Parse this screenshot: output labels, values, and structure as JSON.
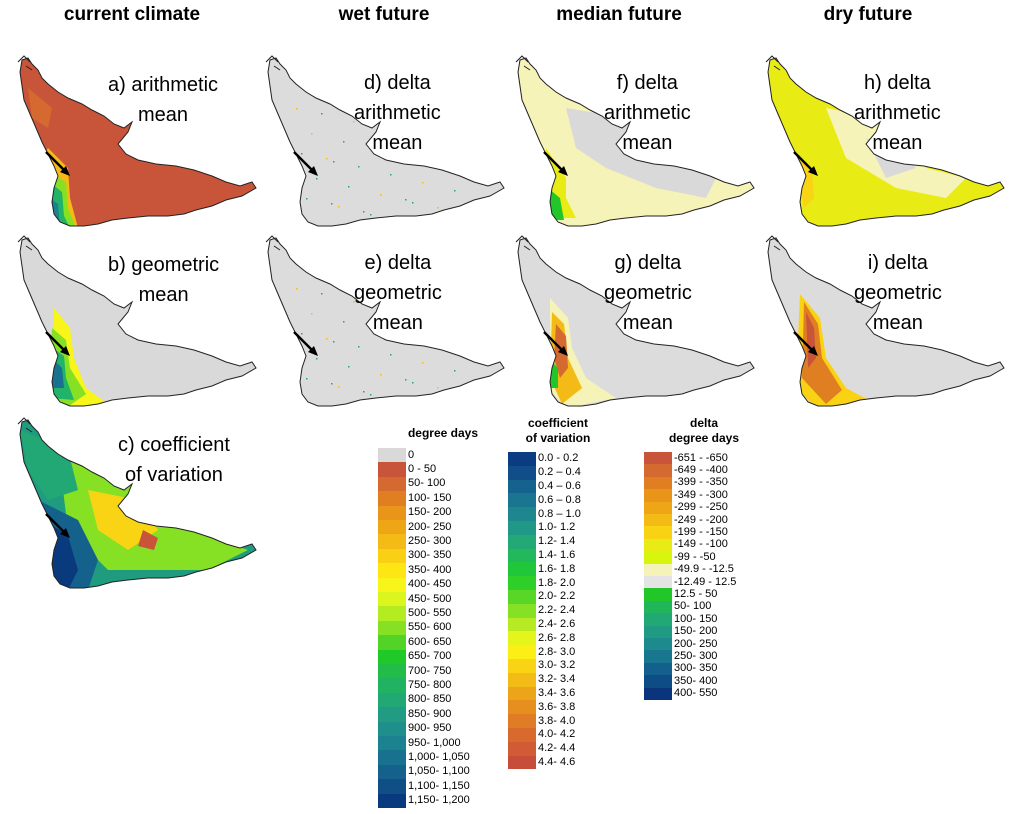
{
  "columns": [
    "current climate",
    "wet future",
    "median future",
    "dry future"
  ],
  "panels": [
    {
      "id": "a",
      "lines": [
        "a) arithmetic",
        "mean"
      ],
      "variant": "cur-arith"
    },
    {
      "id": "b",
      "lines": [
        "b) geometric",
        "mean"
      ],
      "variant": "cur-geo"
    },
    {
      "id": "c",
      "lines": [
        "c) coefficient",
        "of variation"
      ],
      "variant": "cur-cv"
    },
    {
      "id": "d",
      "lines": [
        "d) delta",
        "arithmetic",
        "mean"
      ],
      "variant": "wet"
    },
    {
      "id": "e",
      "lines": [
        "e) delta",
        "geometric",
        "mean"
      ],
      "variant": "wet"
    },
    {
      "id": "f",
      "lines": [
        "f) delta",
        "arithmetic",
        "mean"
      ],
      "variant": "med-arith"
    },
    {
      "id": "g",
      "lines": [
        "g) delta",
        "geometric",
        "mean"
      ],
      "variant": "med-geo"
    },
    {
      "id": "h",
      "lines": [
        "h) delta",
        "arithmetic",
        "mean"
      ],
      "variant": "dry-arith"
    },
    {
      "id": "i",
      "lines": [
        "i) delta",
        "geometric",
        "mean"
      ],
      "variant": "dry-geo"
    }
  ],
  "legends": {
    "degree_days": {
      "title": [
        "degree days"
      ],
      "items": [
        {
          "label": "0",
          "color": "#d9d9d9"
        },
        {
          "label": "0 - 50",
          "color": "#c8553a"
        },
        {
          "label": "50- 100",
          "color": "#d46a2f"
        },
        {
          "label": "100- 150",
          "color": "#e07f22"
        },
        {
          "label": "150- 200",
          "color": "#e8951a"
        },
        {
          "label": "200- 250",
          "color": "#eea617"
        },
        {
          "label": "250- 300",
          "color": "#f4bb16"
        },
        {
          "label": "300- 350",
          "color": "#f9d014"
        },
        {
          "label": "350- 400",
          "color": "#fde614"
        },
        {
          "label": "400- 450",
          "color": "#f8f51a"
        },
        {
          "label": "450- 500",
          "color": "#dcf51e"
        },
        {
          "label": "500- 550",
          "color": "#b4ec22"
        },
        {
          "label": "550- 600",
          "color": "#86e024"
        },
        {
          "label": "600- 650",
          "color": "#52d426"
        },
        {
          "label": "650- 700",
          "color": "#20c828"
        },
        {
          "label": "700- 750",
          "color": "#21bd48"
        },
        {
          "label": "750- 800",
          "color": "#22b362"
        },
        {
          "label": "800- 850",
          "color": "#22a874"
        },
        {
          "label": "850- 900",
          "color": "#219c82"
        },
        {
          "label": "900- 950",
          "color": "#1f8f8c"
        },
        {
          "label": "950- 1,000",
          "color": "#1c8290"
        },
        {
          "label": "1,000- 1,050",
          "color": "#18728f"
        },
        {
          "label": "1,050- 1,100",
          "color": "#14628c"
        },
        {
          "label": "1,100- 1,150",
          "color": "#0f4f86"
        },
        {
          "label": "1,150- 1,200",
          "color": "#0a3a7e"
        }
      ]
    },
    "coefficient_of_variation": {
      "title": [
        "coefficient",
        "of variation"
      ],
      "items": [
        {
          "label": "0.0 - 0.2",
          "color": "#0b3b80"
        },
        {
          "label": "0.2 – 0.4",
          "color": "#114e89"
        },
        {
          "label": "0.4 – 0.6",
          "color": "#16628e"
        },
        {
          "label": "0.6 – 0.8",
          "color": "#1a7590"
        },
        {
          "label": "0.8 – 1.0",
          "color": "#1e868e"
        },
        {
          "label": "1.0- 1.2",
          "color": "#209887"
        },
        {
          "label": "1.2- 1.4",
          "color": "#22a976"
        },
        {
          "label": "1.4- 1.6",
          "color": "#22b85c"
        },
        {
          "label": "1.6- 1.8",
          "color": "#21c73a"
        },
        {
          "label": "1.8- 2.0",
          "color": "#2ecf28"
        },
        {
          "label": "2.0- 2.2",
          "color": "#58d726"
        },
        {
          "label": "2.2- 2.4",
          "color": "#86e024"
        },
        {
          "label": "2.4- 2.6",
          "color": "#b6ea22"
        },
        {
          "label": "2.6- 2.8",
          "color": "#e5f51c"
        },
        {
          "label": "2.8- 3.0",
          "color": "#fbef15"
        },
        {
          "label": "3.0- 3.2",
          "color": "#f8d414"
        },
        {
          "label": "3.2- 3.4",
          "color": "#f2bb16"
        },
        {
          "label": "3.4- 3.6",
          "color": "#eca419"
        },
        {
          "label": "3.6- 3.8",
          "color": "#e68f1f"
        },
        {
          "label": "3.8- 4.0",
          "color": "#df7c25"
        },
        {
          "label": "4.0- 4.2",
          "color": "#d86a2d"
        },
        {
          "label": "4.2- 4.4",
          "color": "#d05b34"
        },
        {
          "label": "4.4- 4.6",
          "color": "#c74c3a"
        }
      ]
    },
    "delta_degree_days": {
      "title": [
        "delta",
        "degree days"
      ],
      "items": [
        {
          "label": "-651 - -650",
          "color": "#c8553a"
        },
        {
          "label": "-649 - -400",
          "color": "#d46a2f"
        },
        {
          "label": "-399 - -350",
          "color": "#e07f22"
        },
        {
          "label": "-349 - -300",
          "color": "#e8951a"
        },
        {
          "label": "-299 - -250",
          "color": "#eea617"
        },
        {
          "label": "-249 - -200",
          "color": "#f4bb16"
        },
        {
          "label": "-199 - -150",
          "color": "#fad214"
        },
        {
          "label": "-149 - -100",
          "color": "#e9ec14"
        },
        {
          "label": "-99 - -50",
          "color": "#d8f50e"
        },
        {
          "label": "-49.9 - -12.5",
          "color": "#f6f3b8"
        },
        {
          "label": "-12.49 - 12.5",
          "color": "#e4e4e4"
        },
        {
          "label": "12.5 - 50",
          "color": "#21c728"
        },
        {
          "label": "50- 100",
          "color": "#22b65a"
        },
        {
          "label": "100- 150",
          "color": "#22a874"
        },
        {
          "label": "150- 200",
          "color": "#219a84"
        },
        {
          "label": "200- 250",
          "color": "#1d8b8e"
        },
        {
          "label": "250- 300",
          "color": "#18768f"
        },
        {
          "label": "300- 350",
          "color": "#12608b"
        },
        {
          "label": "350- 400",
          "color": "#0e4c86"
        },
        {
          "label": "400- 550",
          "color": "#0a357d"
        }
      ]
    }
  }
}
